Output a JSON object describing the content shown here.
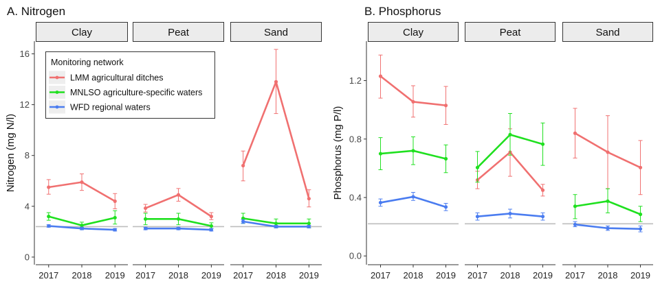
{
  "chart_data": [
    {
      "type": "line",
      "title": "A. Nitrogen",
      "ylabel": "Nitrogen (mg N/l)",
      "ylim": [
        -0.6,
        17
      ],
      "yticks": [
        0,
        4,
        8,
        12,
        16
      ],
      "reference_line": 2.4,
      "facets": [
        {
          "label": "Clay",
          "x": [
            "2017",
            "2018",
            "2019"
          ],
          "series": [
            {
              "name": "LMM agricultural ditches",
              "values": [
                5.5,
                5.9,
                4.4
              ],
              "lower": [
                4.95,
                5.25,
                3.8
              ],
              "upper": [
                6.1,
                6.55,
                5.0
              ]
            },
            {
              "name": "MNLSO agriculture-specific waters",
              "values": [
                3.2,
                2.5,
                3.1
              ],
              "lower": [
                2.9,
                2.3,
                2.6
              ],
              "upper": [
                3.5,
                2.75,
                3.65
              ]
            },
            {
              "name": "WFD regional waters",
              "values": [
                2.45,
                2.25,
                2.15
              ],
              "lower": [
                2.35,
                2.15,
                2.05
              ],
              "upper": [
                2.55,
                2.35,
                2.25
              ]
            }
          ]
        },
        {
          "label": "Peat",
          "x": [
            "2017",
            "2018",
            "2019"
          ],
          "series": [
            {
              "name": "LMM agricultural ditches",
              "values": [
                3.85,
                4.9,
                3.2
              ],
              "lower": [
                3.55,
                4.4,
                2.95
              ],
              "upper": [
                4.15,
                5.4,
                3.5
              ]
            },
            {
              "name": "MNLSO agriculture-specific waters",
              "values": [
                3.0,
                3.0,
                2.45
              ],
              "lower": [
                2.55,
                2.55,
                2.25
              ],
              "upper": [
                3.45,
                3.45,
                2.7
              ]
            },
            {
              "name": "WFD regional waters",
              "values": [
                2.25,
                2.25,
                2.15
              ],
              "lower": [
                2.15,
                2.15,
                2.05
              ],
              "upper": [
                2.35,
                2.35,
                2.25
              ]
            }
          ]
        },
        {
          "label": "Sand",
          "x": [
            "2017",
            "2018",
            "2019"
          ],
          "series": [
            {
              "name": "LMM agricultural ditches",
              "values": [
                7.2,
                13.8,
                4.6
              ],
              "lower": [
                6.0,
                11.3,
                3.95
              ],
              "upper": [
                8.35,
                16.35,
                5.3
              ]
            },
            {
              "name": "MNLSO agriculture-specific waters",
              "values": [
                3.05,
                2.65,
                2.65
              ],
              "lower": [
                2.65,
                2.3,
                2.3
              ],
              "upper": [
                3.45,
                3.0,
                3.0
              ]
            },
            {
              "name": "WFD regional waters",
              "values": [
                2.8,
                2.4,
                2.4
              ],
              "lower": [
                2.65,
                2.3,
                2.3
              ],
              "upper": [
                2.95,
                2.5,
                2.5
              ]
            }
          ]
        }
      ]
    },
    {
      "type": "line",
      "title": "B. Phosphorus",
      "ylabel": "Phosphorus (mg P/l)",
      "ylim": [
        -0.06,
        1.47
      ],
      "yticks": [
        0.0,
        0.4,
        0.8,
        1.2
      ],
      "ytick_labels": [
        "0.0",
        "0.4",
        "0.8",
        "1.2"
      ],
      "reference_line": 0.22,
      "facets": [
        {
          "label": "Clay",
          "x": [
            "2017",
            "2018",
            "2019"
          ],
          "series": [
            {
              "name": "LMM agricultural ditches",
              "values": [
                1.23,
                1.055,
                1.03
              ],
              "lower": [
                1.08,
                0.95,
                0.9
              ],
              "upper": [
                1.375,
                1.165,
                1.16
              ]
            },
            {
              "name": "MNLSO agriculture-specific waters",
              "values": [
                0.7,
                0.72,
                0.665
              ],
              "lower": [
                0.59,
                0.625,
                0.57
              ],
              "upper": [
                0.81,
                0.815,
                0.76
              ]
            },
            {
              "name": "WFD regional waters",
              "values": [
                0.365,
                0.405,
                0.335
              ],
              "lower": [
                0.34,
                0.38,
                0.31
              ],
              "upper": [
                0.39,
                0.435,
                0.36
              ]
            }
          ]
        },
        {
          "label": "Peat",
          "x": [
            "2017",
            "2018",
            "2019"
          ],
          "series": [
            {
              "name": "LMM agricultural ditches",
              "values": [
                0.52,
                0.71,
                0.45
              ],
              "lower": [
                0.46,
                0.545,
                0.41
              ],
              "upper": [
                0.58,
                0.87,
                0.49
              ]
            },
            {
              "name": "MNLSO agriculture-specific waters",
              "values": [
                0.605,
                0.83,
                0.765
              ],
              "lower": [
                0.505,
                0.69,
                0.62
              ],
              "upper": [
                0.715,
                0.975,
                0.91
              ]
            },
            {
              "name": "WFD regional waters",
              "values": [
                0.27,
                0.29,
                0.27
              ],
              "lower": [
                0.245,
                0.26,
                0.245
              ],
              "upper": [
                0.295,
                0.32,
                0.295
              ]
            }
          ]
        },
        {
          "label": "Sand",
          "x": [
            "2017",
            "2018",
            "2019"
          ],
          "series": [
            {
              "name": "LMM agricultural ditches",
              "values": [
                0.84,
                0.71,
                0.605
              ],
              "lower": [
                0.67,
                0.46,
                0.42
              ],
              "upper": [
                1.01,
                0.96,
                0.79
              ]
            },
            {
              "name": "MNLSO agriculture-specific waters",
              "values": [
                0.34,
                0.375,
                0.285
              ],
              "lower": [
                0.255,
                0.295,
                0.235
              ],
              "upper": [
                0.42,
                0.46,
                0.34
              ]
            },
            {
              "name": "WFD regional waters",
              "values": [
                0.215,
                0.19,
                0.185
              ],
              "lower": [
                0.2,
                0.175,
                0.165
              ],
              "upper": [
                0.235,
                0.205,
                0.205
              ]
            }
          ]
        }
      ]
    }
  ],
  "legend": {
    "title": "Monitoring network",
    "entries": [
      "LMM agricultural ditches",
      "MNLSO agriculture-specific waters",
      "WFD regional waters"
    ],
    "placement": "top-left of panel A"
  },
  "colors": {
    "LMM agricultural ditches": "#f07070",
    "MNLSO agriculture-specific waters": "#1fe01f",
    "WFD regional waters": "#4a7cf0",
    "reference_line": "#bdbdbd",
    "strip_fill": "#ececec",
    "strip_border": "#333333",
    "axis": "#333333"
  },
  "grid": false
}
